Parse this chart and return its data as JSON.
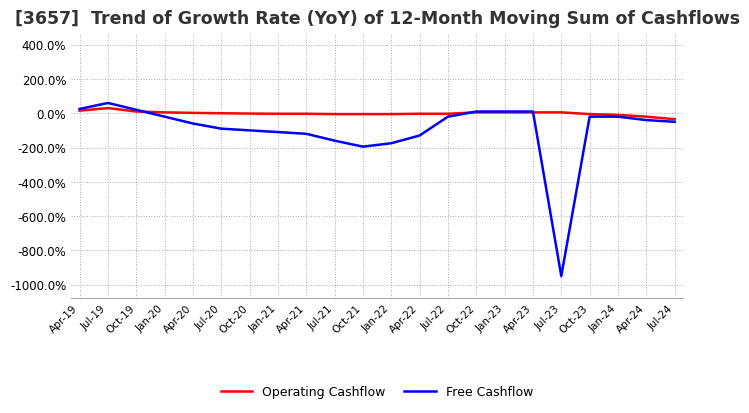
{
  "title": "[3657]  Trend of Growth Rate (YoY) of 12-Month Moving Sum of Cashflows",
  "title_fontsize": 12.5,
  "ylim": [
    -1080,
    460
  ],
  "yticks": [
    400,
    200,
    0,
    -200,
    -400,
    -600,
    -800,
    -1000
  ],
  "x_labels": [
    "Apr-19",
    "Jul-19",
    "Oct-19",
    "Jan-20",
    "Apr-20",
    "Jul-20",
    "Oct-20",
    "Jan-21",
    "Apr-21",
    "Jul-21",
    "Oct-21",
    "Jan-22",
    "Apr-22",
    "Jul-22",
    "Oct-22",
    "Jan-23",
    "Apr-23",
    "Jul-23",
    "Oct-23",
    "Jan-24",
    "Apr-24",
    "Jul-24"
  ],
  "operating_cashflow": [
    15,
    30,
    10,
    5,
    2,
    0,
    -2,
    -3,
    -3,
    -5,
    -5,
    -5,
    -3,
    -3,
    5,
    5,
    5,
    5,
    -5,
    -10,
    -20,
    -35
  ],
  "free_cashflow": [
    25,
    60,
    20,
    -20,
    -60,
    -90,
    -100,
    -110,
    -120,
    -160,
    -195,
    -175,
    -130,
    -20,
    10,
    10,
    10,
    -950,
    -20,
    -20,
    -40,
    -50
  ],
  "ocf_color": "#ff0000",
  "fcf_color": "#0000ff",
  "line_width": 1.8,
  "background_color": "#ffffff",
  "grid_color": "#aaaaaa",
  "legend_labels": [
    "Operating Cashflow",
    "Free Cashflow"
  ]
}
